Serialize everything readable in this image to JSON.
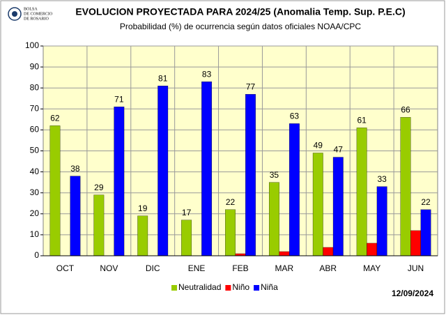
{
  "chart_data": {
    "type": "bar",
    "title": "EVOLUCION PROYECTADA PARA 2024/25 (Anomalia Temp. Sup. P.E.C)",
    "subtitle": "Probabilidad (%) de ocurrencia según datos oficiales NOAA/CPC",
    "logo_text": [
      "BOLSA",
      "DE COMERCIO",
      "DE ROSARIO"
    ],
    "annotation": "12/09/2024",
    "categories": [
      "OCT",
      "NOV",
      "DIC",
      "ENE",
      "FEB",
      "MAR",
      "ABR",
      "MAY",
      "JUN"
    ],
    "series": [
      {
        "name": "Neutralidad",
        "color": "#99cc00",
        "show_labels": true,
        "values": [
          62,
          29,
          19,
          17,
          22,
          35,
          49,
          61,
          66
        ]
      },
      {
        "name": "Niño",
        "color": "#ff0000",
        "show_labels": false,
        "values": [
          0,
          0,
          0,
          0,
          1,
          2,
          4,
          6,
          12
        ]
      },
      {
        "name": "Niña",
        "color": "#0000ff",
        "show_labels": true,
        "values": [
          38,
          71,
          81,
          83,
          77,
          63,
          47,
          33,
          22
        ]
      }
    ],
    "ylim": [
      0,
      100
    ],
    "yticks": [
      0,
      10,
      20,
      30,
      40,
      50,
      60,
      70,
      80,
      90,
      100
    ],
    "grid": true,
    "legend": "bottom"
  }
}
